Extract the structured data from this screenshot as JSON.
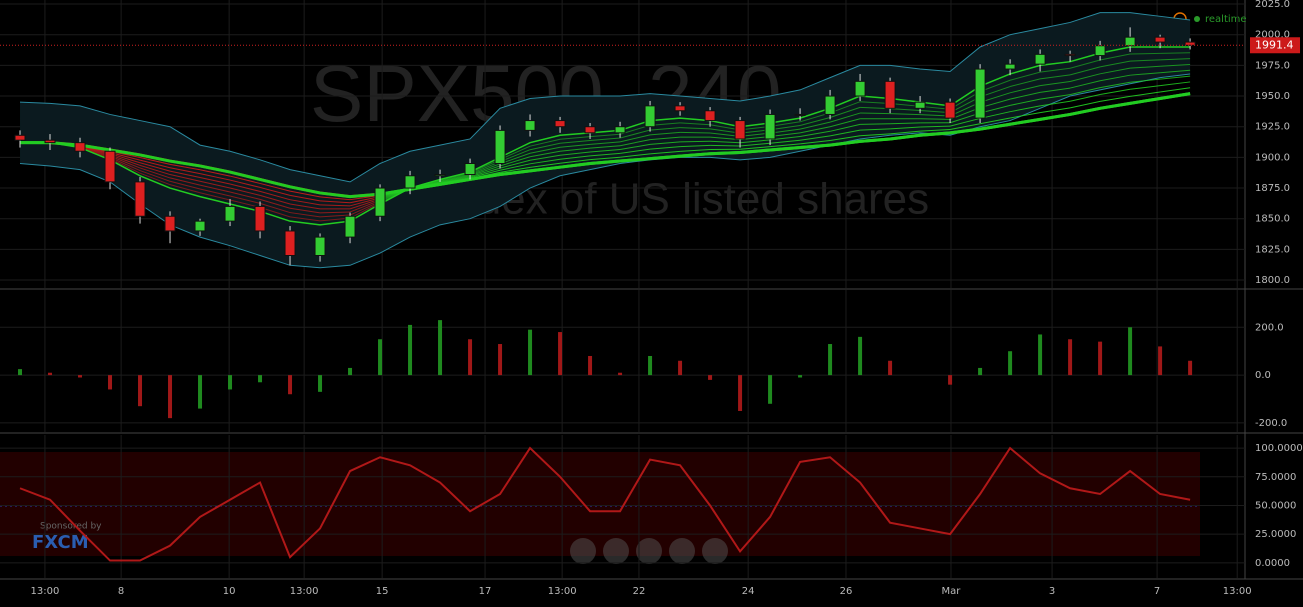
{
  "chart_data": [
    {
      "type": "candlestick",
      "watermark": "SPX500, 240",
      "subtitle": "Index of US listed shares",
      "status": "realtime",
      "up_color": "#33cc33",
      "down_color": "#dd2020",
      "x": [
        0,
        1,
        2,
        3,
        4,
        5,
        6,
        7,
        8,
        9,
        10,
        11,
        12,
        13,
        14,
        15,
        16,
        17,
        18,
        19,
        20,
        21,
        22,
        23,
        24,
        25,
        26,
        27,
        28,
        29,
        30,
        31,
        32,
        33,
        34,
        35,
        36,
        37,
        38,
        39
      ],
      "open": [
        1918,
        1914,
        1912,
        1905,
        1880,
        1852,
        1840,
        1848,
        1860,
        1840,
        1820,
        1835,
        1852,
        1875,
        1885,
        1886,
        1895,
        1922,
        1930,
        1925,
        1920,
        1925,
        1942,
        1938,
        1930,
        1915,
        1935,
        1935,
        1950,
        1962,
        1940,
        1945,
        1932,
        1972,
        1976,
        1984,
        1983,
        1991,
        1998,
        1994
      ],
      "high": [
        1922,
        1919,
        1916,
        1908,
        1884,
        1856,
        1850,
        1866,
        1864,
        1844,
        1838,
        1855,
        1878,
        1889,
        1890,
        1899,
        1926,
        1935,
        1933,
        1928,
        1929,
        1946,
        1945,
        1941,
        1933,
        1939,
        1940,
        1955,
        1968,
        1965,
        1950,
        1948,
        1976,
        1980,
        1988,
        1987,
        1995,
        2006,
        2000,
        1997
      ],
      "low": [
        1908,
        1906,
        1900,
        1874,
        1846,
        1830,
        1836,
        1844,
        1834,
        1812,
        1815,
        1830,
        1848,
        1870,
        1880,
        1882,
        1891,
        1917,
        1920,
        1915,
        1916,
        1921,
        1934,
        1925,
        1908,
        1910,
        1930,
        1931,
        1946,
        1936,
        1936,
        1928,
        1928,
        1967,
        1970,
        1978,
        1979,
        1986,
        1989,
        1988
      ],
      "close": [
        1914,
        1912,
        1905,
        1880,
        1852,
        1840,
        1848,
        1860,
        1840,
        1820,
        1835,
        1852,
        1875,
        1885,
        1886,
        1895,
        1922,
        1930,
        1925,
        1920,
        1925,
        1942,
        1938,
        1930,
        1915,
        1935,
        1935,
        1950,
        1962,
        1940,
        1945,
        1932,
        1972,
        1976,
        1984,
        1983,
        1991,
        1998,
        1994,
        1991.4
      ],
      "bb_upper": [
        1945,
        1944,
        1942,
        1935,
        1930,
        1925,
        1910,
        1905,
        1898,
        1890,
        1885,
        1880,
        1895,
        1905,
        1910,
        1915,
        1940,
        1948,
        1950,
        1950,
        1950,
        1952,
        1950,
        1948,
        1946,
        1950,
        1955,
        1965,
        1975,
        1975,
        1972,
        1970,
        1990,
        2000,
        2005,
        2010,
        2018,
        2018,
        2015,
        2012
      ],
      "bb_lower": [
        1895,
        1893,
        1890,
        1880,
        1862,
        1845,
        1835,
        1828,
        1820,
        1812,
        1810,
        1812,
        1822,
        1835,
        1845,
        1850,
        1860,
        1875,
        1885,
        1890,
        1895,
        1898,
        1900,
        1900,
        1898,
        1900,
        1905,
        1910,
        1915,
        1918,
        1920,
        1918,
        1925,
        1930,
        1940,
        1950,
        1955,
        1960,
        1965,
        1968
      ],
      "ma_fast": [
        1912,
        1912,
        1908,
        1898,
        1885,
        1875,
        1868,
        1862,
        1856,
        1848,
        1845,
        1848,
        1862,
        1875,
        1882,
        1888,
        1900,
        1912,
        1918,
        1920,
        1922,
        1930,
        1932,
        1930,
        1925,
        1928,
        1932,
        1940,
        1950,
        1948,
        1945,
        1942,
        1958,
        1968,
        1975,
        1978,
        1985,
        1990,
        1990,
        1990
      ],
      "ma_slow": [
        1912,
        1912,
        1910,
        1906,
        1902,
        1897,
        1893,
        1888,
        1882,
        1876,
        1871,
        1868,
        1870,
        1874,
        1878,
        1882,
        1886,
        1889,
        1892,
        1895,
        1897,
        1899,
        1901,
        1903,
        1904,
        1906,
        1908,
        1910,
        1913,
        1915,
        1918,
        1920,
        1923,
        1927,
        1931,
        1935,
        1940,
        1944,
        1948,
        1952
      ],
      "ylim": [
        1793.5,
        2028.3
      ],
      "yticks": [
        {
          "value": 1800,
          "label": "1800.0"
        },
        {
          "value": 1825,
          "label": "1825.0"
        },
        {
          "value": 1850,
          "label": "1850.0"
        },
        {
          "value": 1875,
          "label": "1875.0"
        },
        {
          "value": 1900,
          "label": "1900.0"
        },
        {
          "value": 1925,
          "label": "1925.0"
        },
        {
          "value": 1950,
          "label": "1950.0"
        },
        {
          "value": 1975,
          "label": "1975.0"
        },
        {
          "value": 2000,
          "label": "2000.0"
        },
        {
          "value": 2025,
          "label": "2025.0"
        }
      ],
      "xlim": [
        -0.667,
        40.83
      ],
      "xticks": [
        {
          "value": 0.83,
          "label": "13:00"
        },
        {
          "value": 3.37,
          "label": "8"
        },
        {
          "value": 6.97,
          "label": "10"
        },
        {
          "value": 9.47,
          "label": "13:00"
        },
        {
          "value": 12.07,
          "label": "15"
        },
        {
          "value": 15.5,
          "label": "17"
        },
        {
          "value": 18.07,
          "label": "13:00"
        },
        {
          "value": 20.63,
          "label": "22"
        },
        {
          "value": 24.27,
          "label": "24"
        },
        {
          "value": 27.53,
          "label": "26"
        },
        {
          "value": 31.03,
          "label": "Mar"
        },
        {
          "value": 34.4,
          "label": "3"
        },
        {
          "value": 37.9,
          "label": "7"
        },
        {
          "value": 40.57,
          "label": "13:00"
        }
      ]
    },
    {
      "type": "histogram",
      "up_color": "#1f8a1f",
      "down_color": "#a01818",
      "values": [
        25,
        10,
        -10,
        -60,
        -130,
        -180,
        -140,
        -60,
        -30,
        -80,
        -70,
        30,
        150,
        210,
        230,
        150,
        130,
        190,
        180,
        80,
        10,
        80,
        60,
        -20,
        -150,
        -120,
        -10,
        130,
        160,
        60,
        0,
        -40,
        30,
        100,
        170,
        150,
        140,
        200,
        120,
        60
      ],
      "ylim": [
        -238,
        356
      ],
      "yticks": [
        {
          "value": -200,
          "label": "-200.0"
        },
        {
          "value": 0,
          "label": "0.0"
        },
        {
          "value": 200,
          "label": "200.0"
        }
      ]
    },
    {
      "type": "line",
      "color": "#b01818",
      "values": [
        65,
        55,
        28,
        2,
        2,
        15,
        40,
        55,
        70,
        5,
        30,
        80,
        92,
        85,
        70,
        45,
        60,
        100,
        75,
        45,
        45,
        90,
        85,
        50,
        10,
        40,
        88,
        92,
        70,
        35,
        30,
        25,
        60,
        100,
        78,
        65,
        60,
        80,
        60,
        55
      ],
      "ylim": [
        -13.2,
        111.4
      ],
      "yticks": [
        {
          "value": 0,
          "label": "0.0000"
        },
        {
          "value": 25,
          "label": "25.0000"
        },
        {
          "value": 50,
          "label": "50.0000"
        },
        {
          "value": 75,
          "label": "75.0000"
        },
        {
          "value": 100,
          "label": "100.0000"
        }
      ],
      "sponsor_text": "Sponsored by",
      "sponsor": "FXCM"
    }
  ]
}
